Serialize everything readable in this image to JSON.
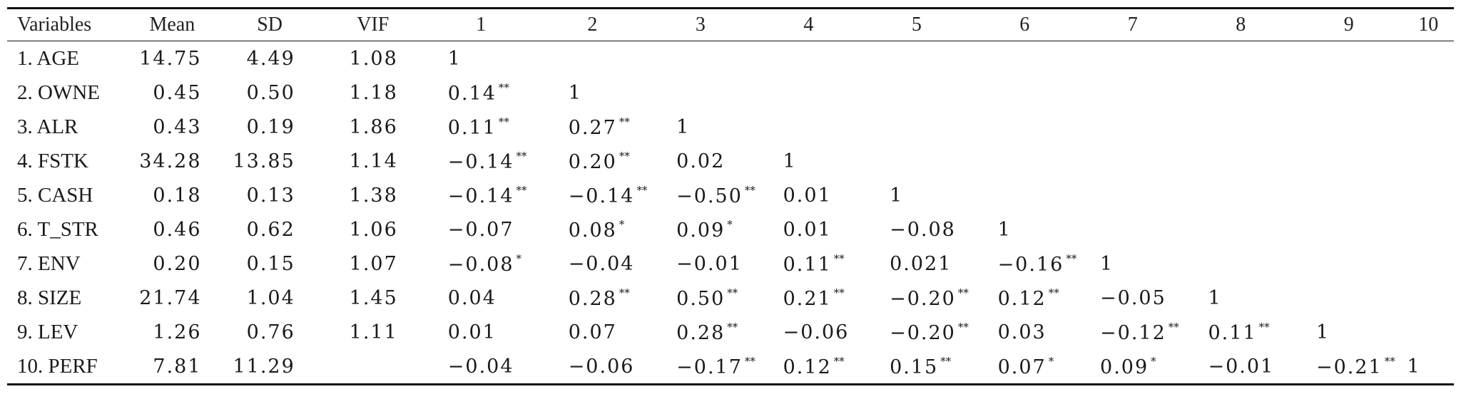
{
  "table": {
    "headers": [
      "Variables",
      "Mean",
      "SD",
      "VIF",
      "1",
      "2",
      "3",
      "4",
      "5",
      "6",
      "7",
      "8",
      "9",
      "10"
    ],
    "rows": [
      {
        "variable": "1. AGE",
        "mean": "14.75",
        "sd": "4.49",
        "vif": "1.08",
        "corr": [
          {
            "v": "1",
            "s": ""
          }
        ]
      },
      {
        "variable": "2. OWNE",
        "mean": "0.45",
        "sd": "0.50",
        "vif": "1.18",
        "corr": [
          {
            "v": "0.14",
            "s": "**"
          },
          {
            "v": "1",
            "s": ""
          }
        ]
      },
      {
        "variable": "3. ALR",
        "mean": "0.43",
        "sd": "0.19",
        "vif": "1.86",
        "corr": [
          {
            "v": "0.11",
            "s": "**"
          },
          {
            "v": "0.27",
            "s": "**"
          },
          {
            "v": "1",
            "s": ""
          }
        ]
      },
      {
        "variable": "4. FSTK",
        "mean": "34.28",
        "sd": "13.85",
        "vif": "1.14",
        "corr": [
          {
            "v": "−0.14",
            "s": "**"
          },
          {
            "v": "0.20",
            "s": "**"
          },
          {
            "v": "0.02",
            "s": ""
          },
          {
            "v": "1",
            "s": ""
          }
        ]
      },
      {
        "variable": "5. CASH",
        "mean": "0.18",
        "sd": "0.13",
        "vif": "1.38",
        "corr": [
          {
            "v": "−0.14",
            "s": "**"
          },
          {
            "v": "−0.14",
            "s": "**"
          },
          {
            "v": "−0.50",
            "s": "**"
          },
          {
            "v": "0.01",
            "s": ""
          },
          {
            "v": "1",
            "s": ""
          }
        ]
      },
      {
        "variable": "6. T_STR",
        "mean": "0.46",
        "sd": "0.62",
        "vif": "1.06",
        "corr": [
          {
            "v": "−0.07",
            "s": ""
          },
          {
            "v": "0.08",
            "s": "*"
          },
          {
            "v": "0.09",
            "s": "*"
          },
          {
            "v": "0.01",
            "s": ""
          },
          {
            "v": "−0.08",
            "s": ""
          },
          {
            "v": "1",
            "s": ""
          }
        ]
      },
      {
        "variable": "7. ENV",
        "mean": "0.20",
        "sd": "0.15",
        "vif": "1.07",
        "corr": [
          {
            "v": "−0.08",
            "s": "*"
          },
          {
            "v": "−0.04",
            "s": ""
          },
          {
            "v": "−0.01",
            "s": ""
          },
          {
            "v": "0.11",
            "s": "**"
          },
          {
            "v": "0.021",
            "s": ""
          },
          {
            "v": "−0.16",
            "s": "**"
          },
          {
            "v": "1",
            "s": ""
          }
        ]
      },
      {
        "variable": "8. SIZE",
        "mean": "21.74",
        "sd": "1.04",
        "vif": "1.45",
        "corr": [
          {
            "v": "0.04",
            "s": ""
          },
          {
            "v": "0.28",
            "s": "**"
          },
          {
            "v": "0.50",
            "s": "**"
          },
          {
            "v": "0.21",
            "s": "**"
          },
          {
            "v": "−0.20",
            "s": "**"
          },
          {
            "v": "0.12",
            "s": "**"
          },
          {
            "v": "−0.05",
            "s": ""
          },
          {
            "v": "1",
            "s": ""
          }
        ]
      },
      {
        "variable": "9. LEV",
        "mean": "1.26",
        "sd": "0.76",
        "vif": "1.11",
        "corr": [
          {
            "v": "0.01",
            "s": ""
          },
          {
            "v": "0.07",
            "s": ""
          },
          {
            "v": "0.28",
            "s": "**"
          },
          {
            "v": "−0.06",
            "s": ""
          },
          {
            "v": "−0.20",
            "s": "**"
          },
          {
            "v": "0.03",
            "s": ""
          },
          {
            "v": "−0.12",
            "s": "**"
          },
          {
            "v": "0.11",
            "s": "**"
          },
          {
            "v": "1",
            "s": ""
          }
        ]
      },
      {
        "variable": "10. PERF",
        "mean": "7.81",
        "sd": "11.29",
        "vif": "",
        "corr": [
          {
            "v": "−0.04",
            "s": ""
          },
          {
            "v": "−0.06",
            "s": ""
          },
          {
            "v": "−0.17",
            "s": "**"
          },
          {
            "v": "0.12",
            "s": "**"
          },
          {
            "v": "0.15",
            "s": "**"
          },
          {
            "v": "0.07",
            "s": "*"
          },
          {
            "v": "0.09",
            "s": "*"
          },
          {
            "v": "−0.01",
            "s": ""
          },
          {
            "v": "−0.21",
            "s": "**"
          },
          {
            "v": "1",
            "s": ""
          }
        ]
      }
    ]
  }
}
